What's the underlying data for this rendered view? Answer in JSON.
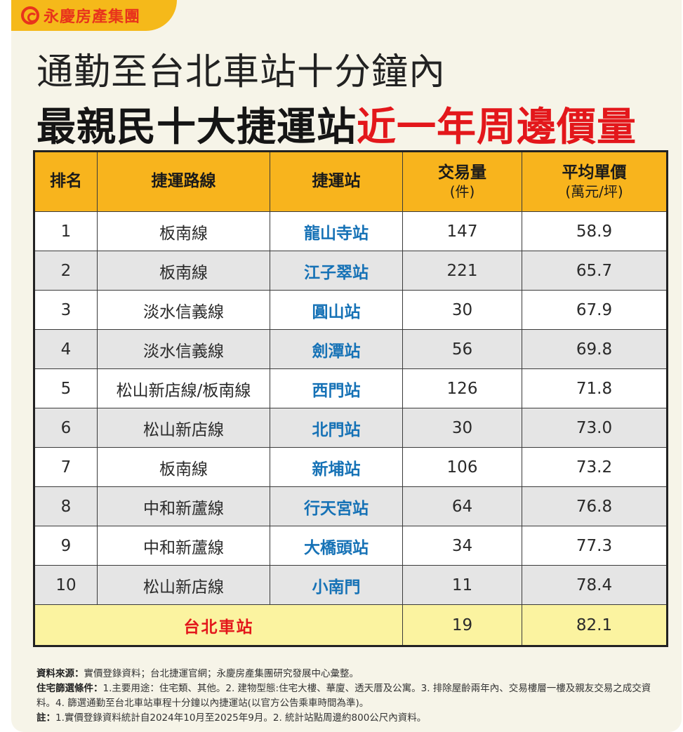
{
  "brand": {
    "name": "永慶房產集團",
    "icon": "yungching-logo-icon",
    "color": "#e8341c"
  },
  "title": {
    "line1": "通勤至台北車站十分鐘內",
    "line2_black": "最親民十大捷運站",
    "line2_red": "近一年周邊價量"
  },
  "colors": {
    "header_bg": "#f8b41d",
    "station_blue": "#1672b6",
    "accent_red": "#e3171b",
    "total_bg": "#fbf3a0"
  },
  "table": {
    "headers": {
      "rank": "排名",
      "line": "捷運路線",
      "station": "捷運站",
      "volume": "交易量",
      "volume_unit": "(件)",
      "price": "平均單價",
      "price_unit": "(萬元/坪)"
    },
    "rows": [
      {
        "rank": "1",
        "line": "板南線",
        "station": "龍山寺站",
        "volume": "147",
        "price": "58.9"
      },
      {
        "rank": "2",
        "line": "板南線",
        "station": "江子翠站",
        "volume": "221",
        "price": "65.7"
      },
      {
        "rank": "3",
        "line": "淡水信義線",
        "station": "圓山站",
        "volume": "30",
        "price": "67.9"
      },
      {
        "rank": "4",
        "line": "淡水信義線",
        "station": "劍潭站",
        "volume": "56",
        "price": "69.8"
      },
      {
        "rank": "5",
        "line": "松山新店線/板南線",
        "station": "西門站",
        "volume": "126",
        "price": "71.8"
      },
      {
        "rank": "6",
        "line": "松山新店線",
        "station": "北門站",
        "volume": "30",
        "price": "73.0"
      },
      {
        "rank": "7",
        "line": "板南線",
        "station": "新埔站",
        "volume": "106",
        "price": "73.2"
      },
      {
        "rank": "8",
        "line": "中和新蘆線",
        "station": "行天宮站",
        "volume": "64",
        "price": "76.8"
      },
      {
        "rank": "9",
        "line": "中和新蘆線",
        "station": "大橋頭站",
        "volume": "34",
        "price": "77.3"
      },
      {
        "rank": "10",
        "line": "松山新店線",
        "station": "小南門",
        "volume": "11",
        "price": "78.4"
      }
    ],
    "total": {
      "station": "台北車站",
      "volume": "19",
      "price": "82.1"
    }
  },
  "notes": {
    "source_label": "資料來源：",
    "source_text": "實價登錄資料；台北捷運官網；永慶房產集團研究發展中心彙整。",
    "criteria_label": "住宅篩選條件：",
    "criteria_text": "1.主要用途：住宅類、其他。2. 建物型態:住宅大樓、華廈、透天厝及公寓。3. 排除屋齡兩年內、交易樓層一樓及親友交易之成交資料。4. 篩選通勤至台北車站車程十分鐘以內捷運站(以官方公告乘車時間為準)。",
    "note_label": "註：",
    "note_text": "1.實價登錄資料統計自2024年10月至2025年9月。2. 統計站點周邊約800公尺內資料。"
  }
}
